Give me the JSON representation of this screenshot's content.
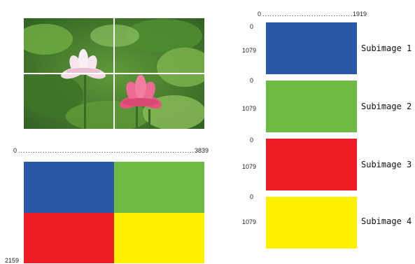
{
  "photo": {
    "colors": {
      "grid_line": "#ffffff"
    }
  },
  "big_image": {
    "x_start": "0",
    "x_end": "3839",
    "y_end": "2159",
    "tiles": [
      {
        "color": "#2B57A7"
      },
      {
        "color": "#6FBA45"
      },
      {
        "color": "#EE1C25"
      },
      {
        "color": "#FFF100"
      }
    ]
  },
  "sub_axis": {
    "x_start": "0",
    "x_end": "1919"
  },
  "subimages": [
    {
      "label": "Subimage 1",
      "y_start": "0",
      "y_end": "1079",
      "color": "#2B57A7"
    },
    {
      "label": "Subimage 2",
      "y_start": "0",
      "y_end": "1079",
      "color": "#6FBA45"
    },
    {
      "label": "Subimage 3",
      "y_start": "0",
      "y_end": "1079",
      "color": "#EE1C25"
    },
    {
      "label": "Subimage 4",
      "y_start": "0",
      "y_end": "1079",
      "color": "#FFF100"
    }
  ]
}
